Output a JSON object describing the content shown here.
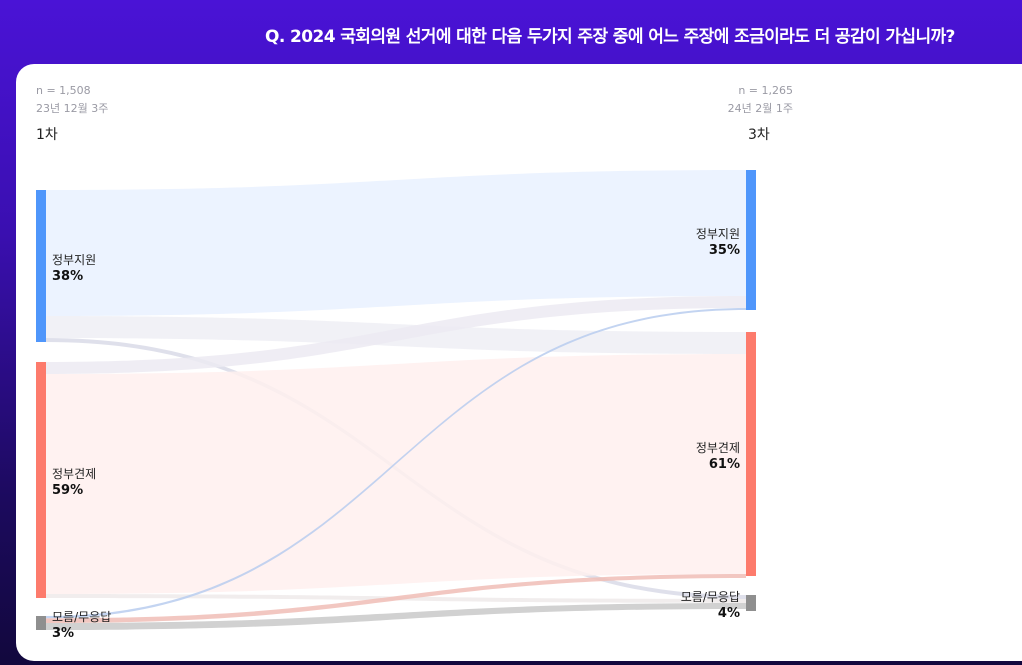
{
  "header": {
    "question": "Q. 2024 국회의원 선거에 대한 다음 두가지 주장 중에 어느 주장에 조금이라도 더 공감이 가십니까?"
  },
  "left_wave": {
    "n": "n = 1,508",
    "date": "23년 12월 3주",
    "label": "1차"
  },
  "right_wave": {
    "n": "n = 1,265",
    "date": "24년 2월 1주",
    "label": "3차"
  },
  "colors": {
    "support": "#4f96fb",
    "check": "#fd7b6c",
    "unknown": "#8f8f8f"
  },
  "chart_data": {
    "type": "sankey",
    "nodes_left": [
      {
        "id": "L_support",
        "label": "정부지원",
        "value_text": "38%",
        "value": 38,
        "color": "#4f96fb"
      },
      {
        "id": "L_check",
        "label": "정부견제",
        "value_text": "59%",
        "value": 59,
        "color": "#fd7b6c"
      },
      {
        "id": "L_unknown",
        "label": "모름/무응답",
        "value_text": "3%",
        "value": 3,
        "color": "#8f8f8f"
      }
    ],
    "nodes_right": [
      {
        "id": "R_support",
        "label": "정부지원",
        "value_text": "35%",
        "value": 35,
        "color": "#4f96fb"
      },
      {
        "id": "R_check",
        "label": "정부견제",
        "value_text": "61%",
        "value": 61,
        "color": "#fd7b6c"
      },
      {
        "id": "R_unknown",
        "label": "모름/무응답",
        "value_text": "4%",
        "value": 4,
        "color": "#8f8f8f"
      }
    ],
    "flows": [
      {
        "from": "L_support",
        "to": "R_support",
        "value": 31.5,
        "color": "#e9f1ff"
      },
      {
        "from": "L_support",
        "to": "R_check",
        "value": 5.5,
        "color": "#eeeef4"
      },
      {
        "from": "L_support",
        "to": "R_unknown",
        "value": 1,
        "color": "#d9dbe8"
      },
      {
        "from": "L_check",
        "to": "R_support",
        "value": 3,
        "color": "#eceaf2"
      },
      {
        "from": "L_check",
        "to": "R_check",
        "value": 55,
        "color": "#fff0ee"
      },
      {
        "from": "L_check",
        "to": "R_unknown",
        "value": 1,
        "color": "#eeeaea"
      },
      {
        "from": "L_unknown",
        "to": "R_support",
        "value": 0.5,
        "color": "#b9cdee"
      },
      {
        "from": "L_unknown",
        "to": "R_check",
        "value": 1,
        "color": "#f0bdb6"
      },
      {
        "from": "L_unknown",
        "to": "R_unknown",
        "value": 1.5,
        "color": "#c9c9c9"
      }
    ]
  }
}
